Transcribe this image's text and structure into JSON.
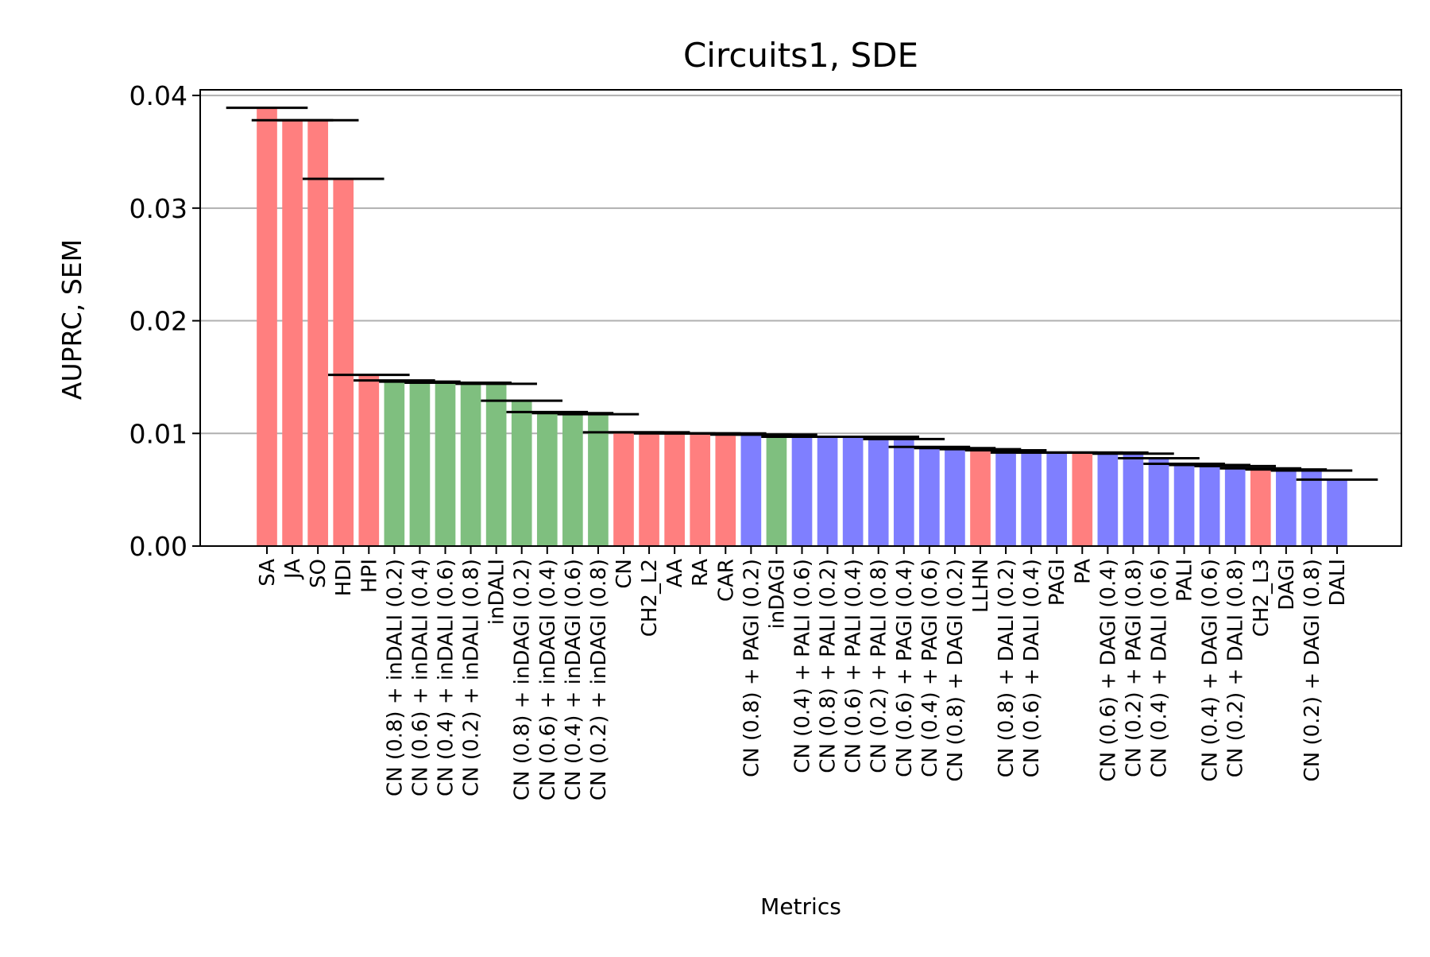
{
  "chart_data": {
    "type": "bar",
    "title": "Circuits1, SDE",
    "xlabel": "Metrics",
    "ylabel": "AUPRC, SEM",
    "ylim": [
      0,
      0.0405
    ],
    "yticks": [
      0.0,
      0.01,
      0.02,
      0.03,
      0.04
    ],
    "ytick_labels": [
      "0.00",
      "0.01",
      "0.02",
      "0.03",
      "0.04"
    ],
    "grid": "y",
    "legend": "none",
    "colors": {
      "red": "#ff7f7f",
      "green": "#7fbf7f",
      "blue": "#7f7fff",
      "sem": "#000000",
      "grid": "#b0b0b0"
    },
    "categories": [
      "SA",
      "JA",
      "SO",
      "HDI",
      "HPI",
      "CN (0.8) + inDALI (0.2)",
      "CN (0.6) + inDALI (0.4)",
      "CN (0.4) + inDALI (0.6)",
      "CN (0.2) + inDALI (0.8)",
      "inDALI",
      "CN (0.8) + inDAGI (0.2)",
      "CN (0.6) + inDAGI (0.4)",
      "CN (0.4) + inDAGI (0.6)",
      "CN (0.2) + inDAGI (0.8)",
      "CN",
      "CH2_L2",
      "AA",
      "RA",
      "CAR",
      "CN (0.8) + PAGI (0.2)",
      "inDAGI",
      "CN (0.4) + PALI (0.6)",
      "CN (0.8) + PALI (0.2)",
      "CN (0.6) + PALI (0.4)",
      "CN (0.2) + PALI (0.8)",
      "CN (0.6) + PAGI (0.4)",
      "CN (0.4) + PAGI (0.6)",
      "CN (0.8) + DAGI (0.2)",
      "LLHN",
      "CN (0.8) + DALI (0.2)",
      "CN (0.6) + DALI (0.4)",
      "PAGI",
      "PA",
      "CN (0.6) + DAGI (0.4)",
      "CN (0.2) + PAGI (0.8)",
      "CN (0.4) + DALI (0.6)",
      "PALI",
      "CN (0.4) + DAGI (0.6)",
      "CN (0.2) + DALI (0.8)",
      "CH2_L3",
      "DAGI",
      "CN (0.2) + DAGI (0.8)",
      "DALI"
    ],
    "values": [
      0.0389,
      0.0378,
      0.0378,
      0.0326,
      0.0152,
      0.0147,
      0.0146,
      0.0145,
      0.0145,
      0.0144,
      0.0129,
      0.0119,
      0.0118,
      0.0117,
      0.0101,
      0.0101,
      0.01,
      0.01,
      0.01,
      0.0099,
      0.0099,
      0.0097,
      0.0097,
      0.0097,
      0.0097,
      0.0095,
      0.0088,
      0.0087,
      0.0086,
      0.0085,
      0.0083,
      0.0083,
      0.0083,
      0.0083,
      0.0082,
      0.0078,
      0.0073,
      0.0072,
      0.0071,
      0.0069,
      0.0068,
      0.0067,
      0.0059
    ],
    "bar_colors": [
      "red",
      "red",
      "red",
      "red",
      "red",
      "green",
      "green",
      "green",
      "green",
      "green",
      "green",
      "green",
      "green",
      "green",
      "red",
      "red",
      "red",
      "red",
      "red",
      "blue",
      "green",
      "blue",
      "blue",
      "blue",
      "blue",
      "blue",
      "blue",
      "blue",
      "red",
      "blue",
      "blue",
      "blue",
      "red",
      "blue",
      "blue",
      "blue",
      "blue",
      "blue",
      "blue",
      "red",
      "blue",
      "blue",
      "blue"
    ]
  }
}
